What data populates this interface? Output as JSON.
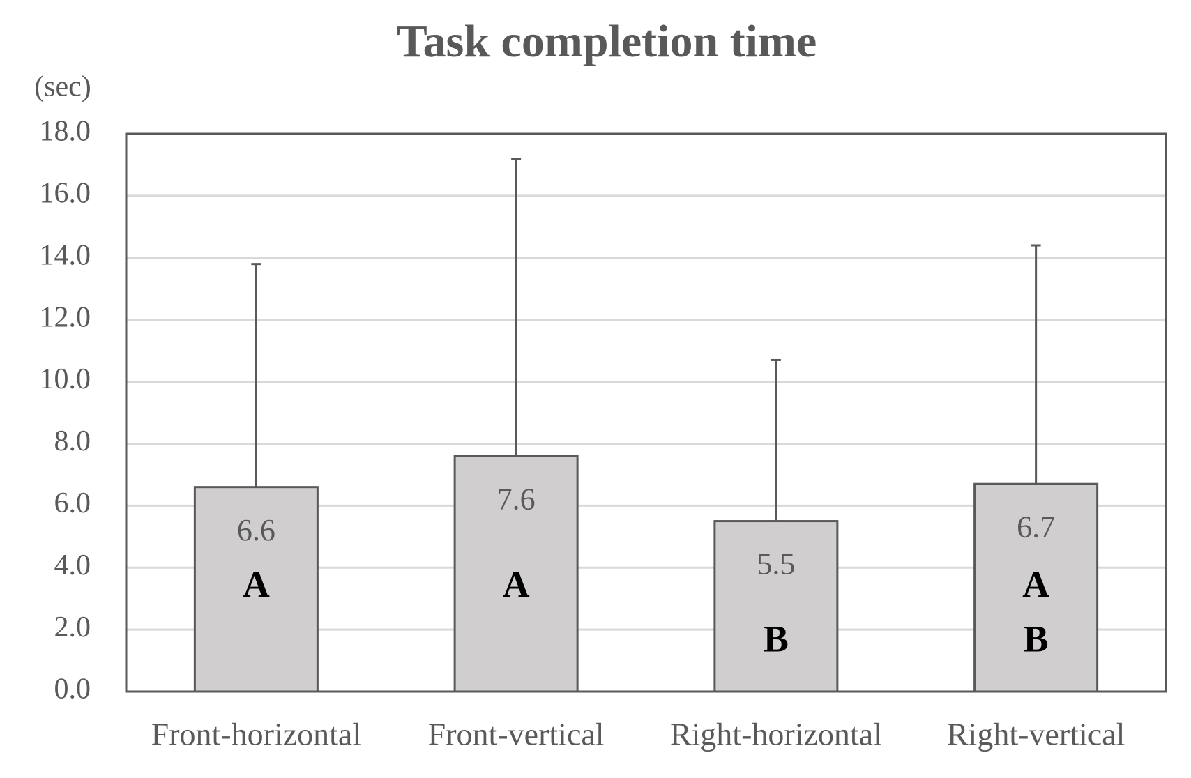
{
  "chart_data": {
    "type": "bar",
    "title": "Task completion time",
    "y_label": "(sec)",
    "categories": [
      "Front-horizontal",
      "Front-vertical",
      "Right-horizontal",
      "Right-vertical"
    ],
    "values": [
      6.6,
      7.6,
      5.5,
      6.7
    ],
    "errors": [
      7.2,
      9.6,
      5.2,
      7.7
    ],
    "letters_row1": [
      "A",
      "A",
      null,
      "A"
    ],
    "letters_row2": [
      null,
      null,
      "B",
      "B"
    ],
    "color": "#d0cecf",
    "ylim": [
      0,
      18
    ],
    "yticks": [
      {
        "value": 0,
        "label": "0.0"
      },
      {
        "value": 2,
        "label": "2.0"
      },
      {
        "value": 4,
        "label": "4.0"
      },
      {
        "value": 6,
        "label": "6.0"
      },
      {
        "value": 8,
        "label": "8.0"
      },
      {
        "value": 10,
        "label": "10.0"
      },
      {
        "value": 12,
        "label": "12.0"
      },
      {
        "value": 14,
        "label": "14.0"
      },
      {
        "value": 16,
        "label": "16.0"
      },
      {
        "value": 18,
        "label": "18.0"
      }
    ],
    "grid": true
  }
}
